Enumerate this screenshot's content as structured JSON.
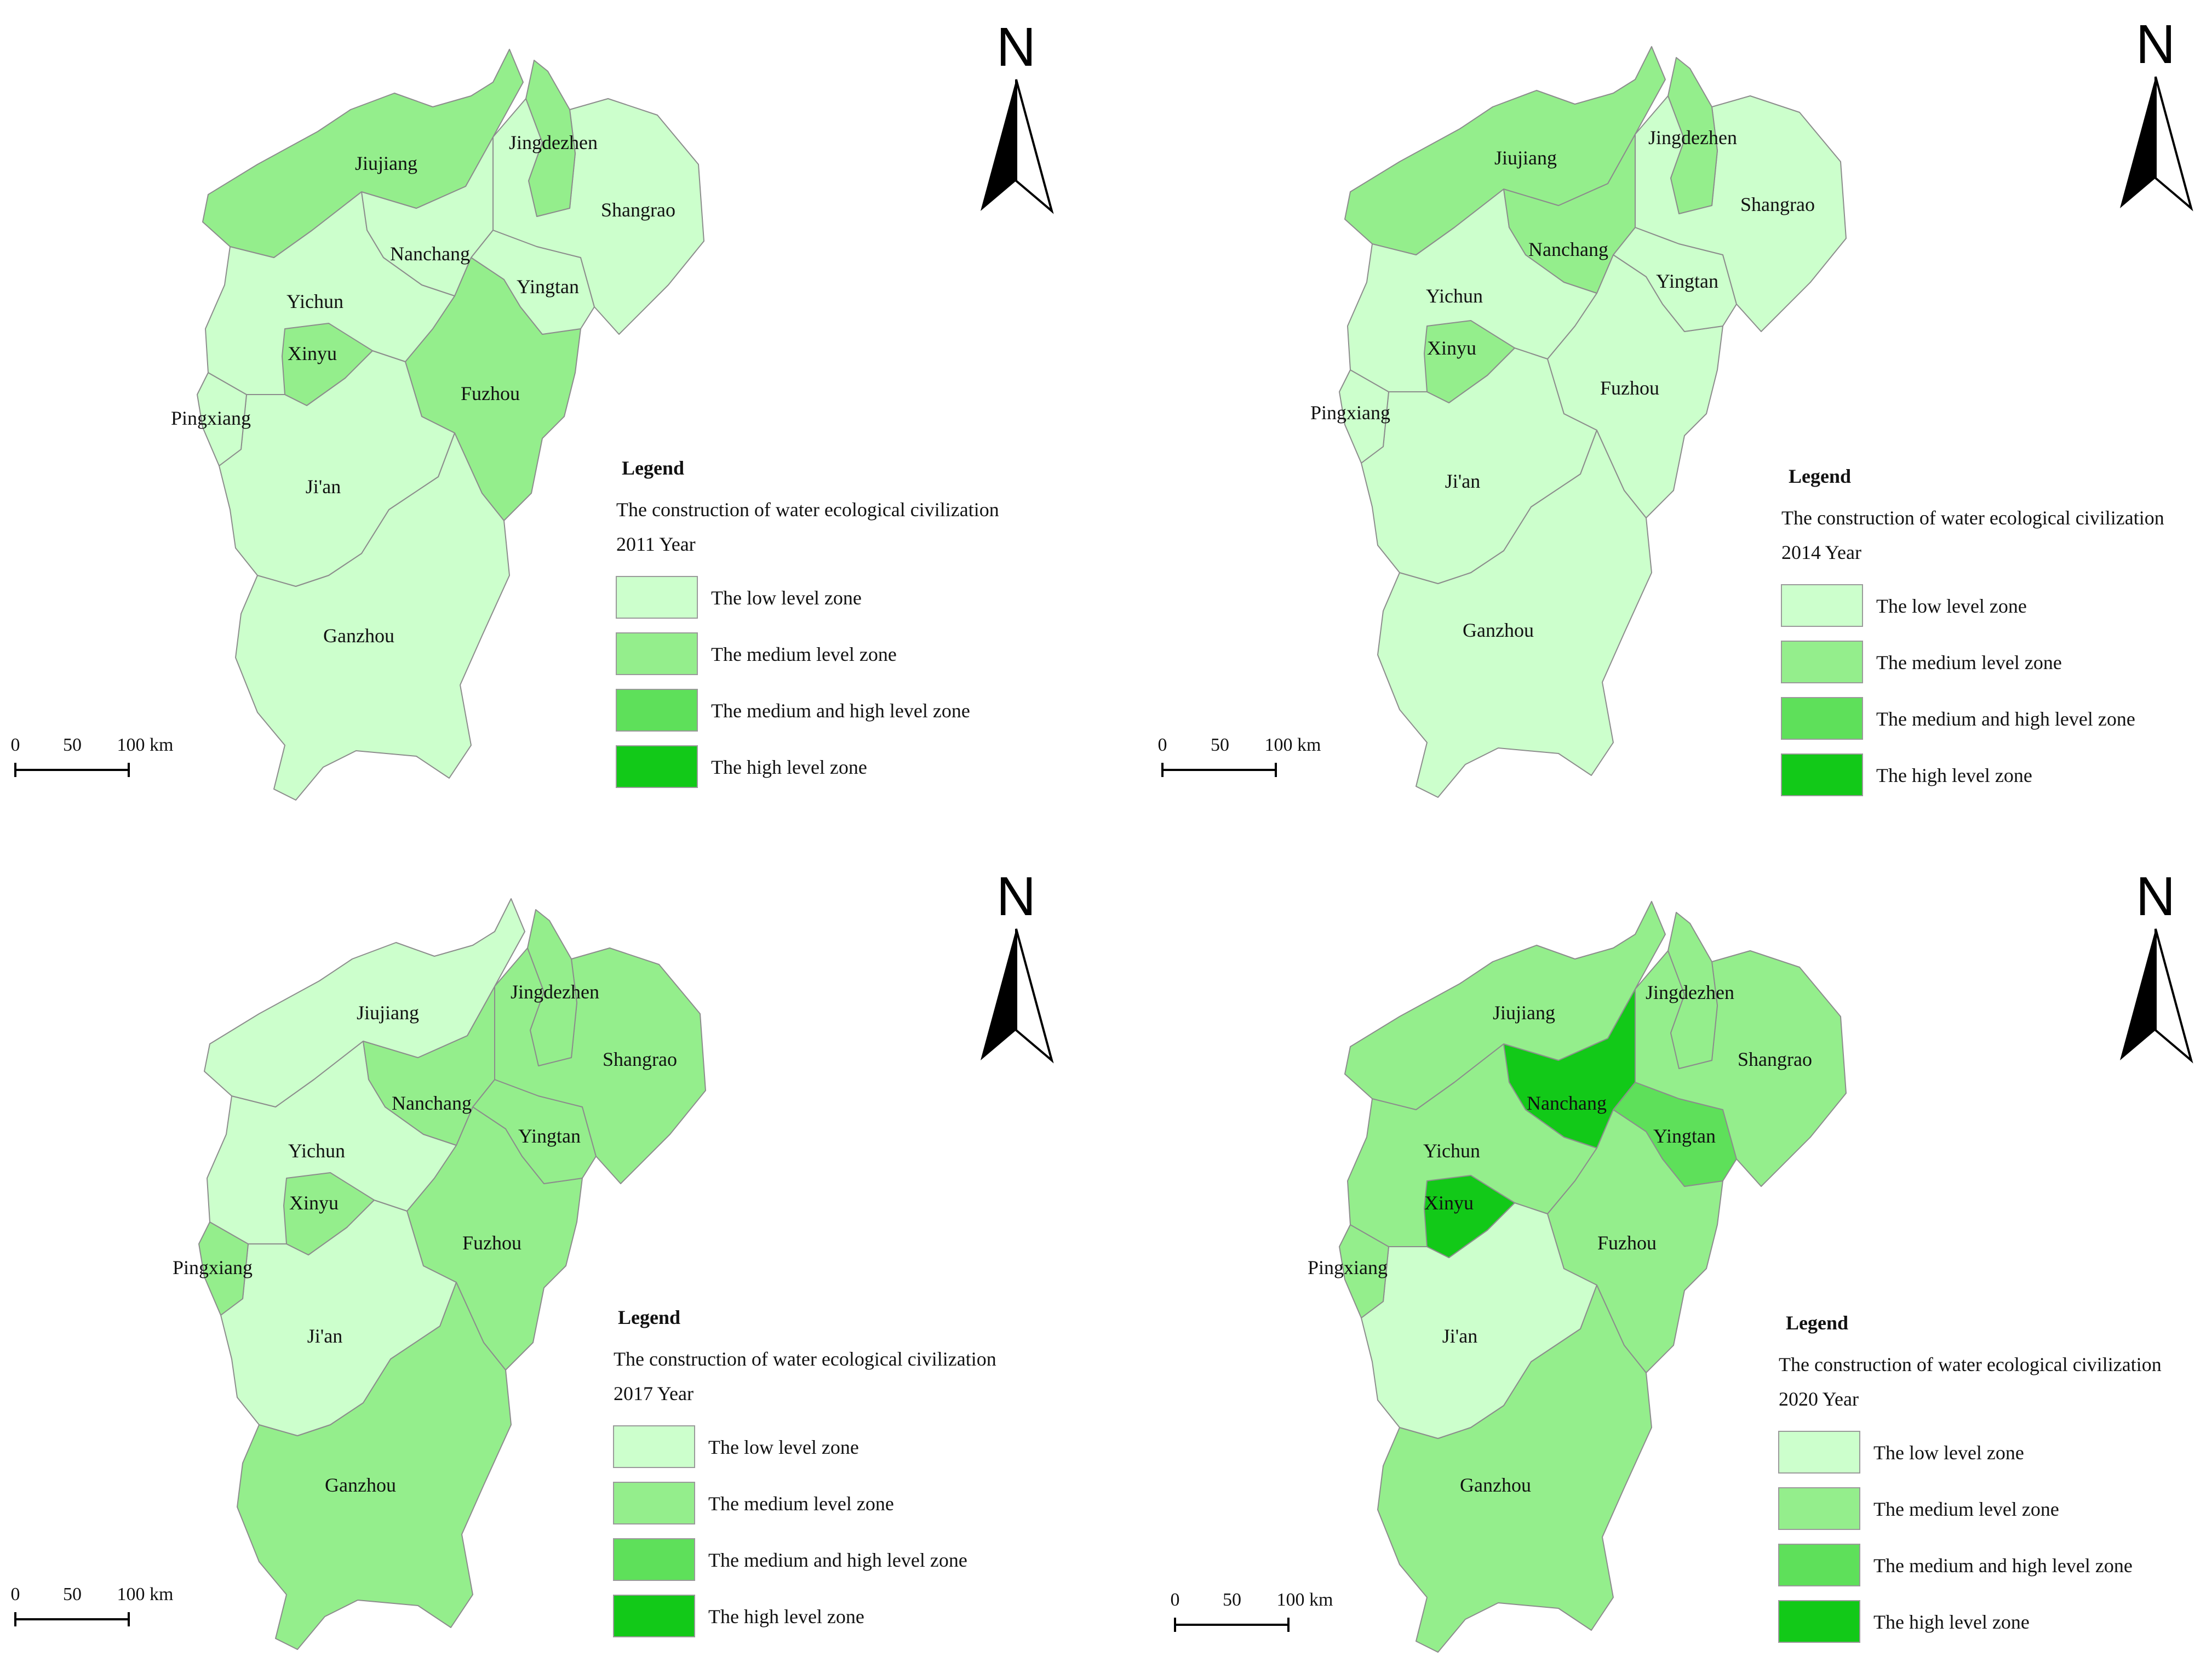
{
  "colors": {
    "low": "#ccffcc",
    "medium": "#94ee8c",
    "medium_high": "#5ee05a",
    "high": "#12c918",
    "outline": "#8c8c8c"
  },
  "legend_heading": "Legend",
  "legend_subtitle": "The construction of water ecological civilization",
  "legend_classes": [
    {
      "key": "low",
      "label": "The low level zone"
    },
    {
      "key": "medium",
      "label": "The medium level zone"
    },
    {
      "key": "medium_high",
      "label": "The medium and high level zone"
    },
    {
      "key": "high",
      "label": "The high level zone"
    }
  ],
  "north_label": "N",
  "scale_bar": {
    "ticks": [
      "0",
      "50",
      "100 km"
    ]
  },
  "panels": [
    {
      "year_label": "2011 Year",
      "levels": {
        "Jiujiang": "medium",
        "Jingdezhen": "medium",
        "Shangrao": "low",
        "Nanchang": "low",
        "Yingtan": "low",
        "Yichun": "low",
        "Xinyu": "medium",
        "Pingxiang": "low",
        "Fuzhou": "medium",
        "Ji'an": "low",
        "Ganzhou": "low"
      }
    },
    {
      "year_label": "2014 Year",
      "levels": {
        "Jiujiang": "medium",
        "Jingdezhen": "medium",
        "Shangrao": "low",
        "Nanchang": "medium",
        "Yingtan": "low",
        "Yichun": "low",
        "Xinyu": "medium",
        "Pingxiang": "low",
        "Fuzhou": "low",
        "Ji'an": "low",
        "Ganzhou": "low"
      }
    },
    {
      "year_label": "2017 Year",
      "levels": {
        "Jiujiang": "low",
        "Jingdezhen": "medium",
        "Shangrao": "medium",
        "Nanchang": "medium",
        "Yingtan": "medium",
        "Yichun": "low",
        "Xinyu": "medium",
        "Pingxiang": "medium",
        "Fuzhou": "medium",
        "Ji'an": "low",
        "Ganzhou": "medium"
      }
    },
    {
      "year_label": "2020 Year",
      "levels": {
        "Jiujiang": "medium",
        "Jingdezhen": "medium",
        "Shangrao": "medium",
        "Nanchang": "high",
        "Yingtan": "medium_high",
        "Yichun": "medium",
        "Xinyu": "high",
        "Pingxiang": "medium",
        "Fuzhou": "medium",
        "Ji'an": "low",
        "Ganzhou": "medium"
      }
    }
  ],
  "cities": [
    "Jiujiang",
    "Jingdezhen",
    "Shangrao",
    "Nanchang",
    "Yingtan",
    "Yichun",
    "Xinyu",
    "Pingxiang",
    "Fuzhou",
    "Ji'an",
    "Ganzhou"
  ]
}
